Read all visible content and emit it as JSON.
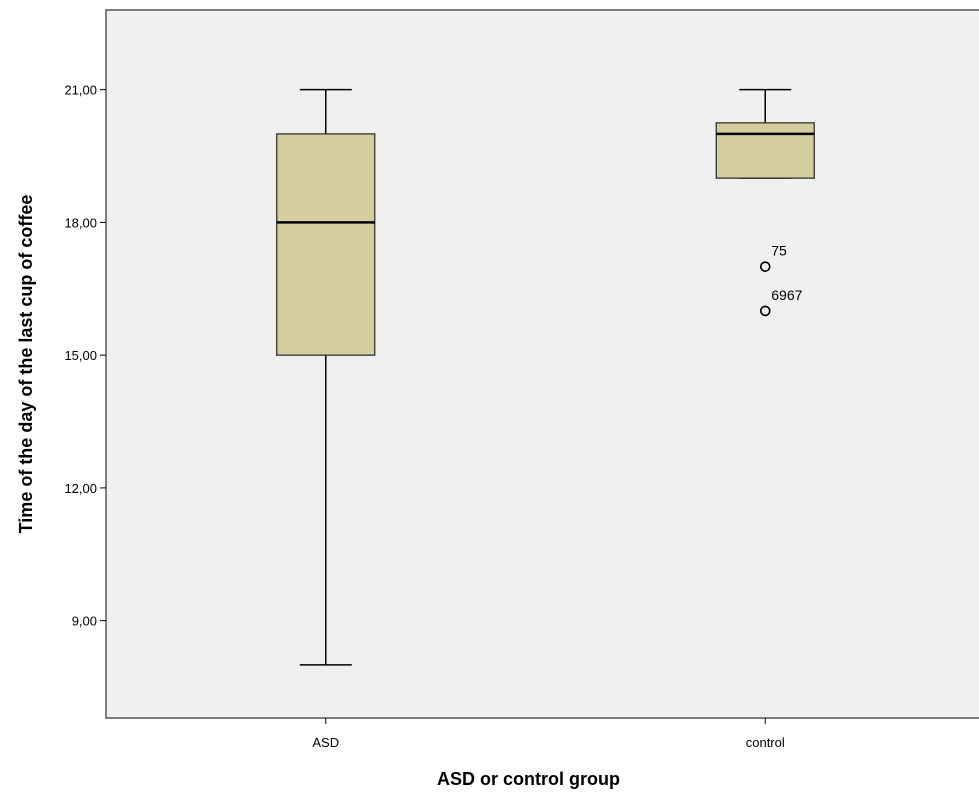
{
  "chart_data": {
    "type": "box",
    "xlabel": "ASD or control group",
    "ylabel": "Time of the day of the last cup of coffee",
    "ylim": [
      6.8,
      22.8
    ],
    "yticks": [
      9,
      12,
      15,
      18,
      21
    ],
    "ytick_labels": [
      "9,00",
      "12,00",
      "15,00",
      "18,00",
      "21,00"
    ],
    "categories": [
      "ASD",
      "control"
    ],
    "boxes": [
      {
        "category": "ASD",
        "whisker_low": 8,
        "q1": 15,
        "median": 18,
        "q3": 20,
        "whisker_high": 21,
        "outliers": []
      },
      {
        "category": "control",
        "whisker_low": 19,
        "q1": 19,
        "median": 20,
        "q3": 20.25,
        "whisker_high": 21,
        "outliers": [
          {
            "value": 17,
            "label": "75"
          },
          {
            "value": 16,
            "label": "6967"
          }
        ]
      }
    ],
    "colors": {
      "box_fill": "#D3CE9C",
      "plot_background": "#F0F0F0",
      "line": "#000000"
    },
    "grid": false,
    "legend": "none"
  }
}
